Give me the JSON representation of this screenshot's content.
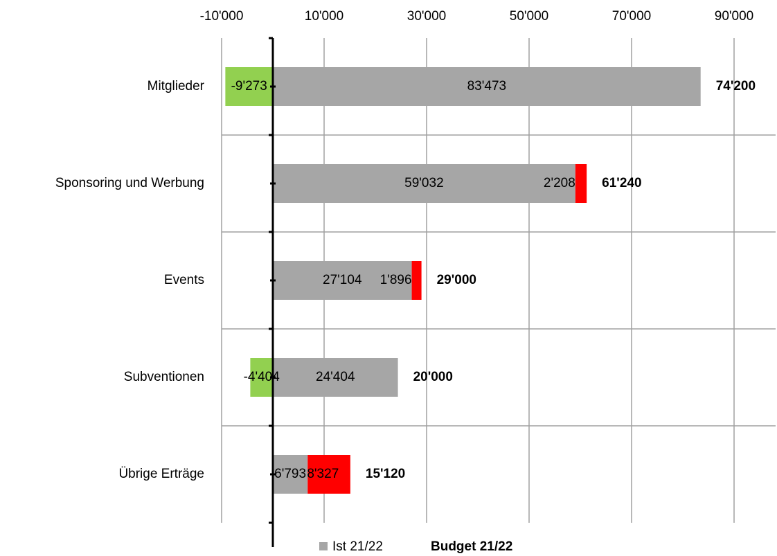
{
  "chart_data": {
    "type": "hbar-stacked",
    "categories": [
      "Mitglieder",
      "Sponsoring und Werbung",
      "Events",
      "Subventionen",
      "Übrige Erträge"
    ],
    "series": [
      {
        "name": "Ist 21/22",
        "color": "#a6a6a6",
        "values": [
          83473,
          59032,
          27104,
          24404,
          6793
        ],
        "value_labels": [
          "83'473",
          "59'032",
          "27'104",
          "24'404",
          "6'793"
        ]
      },
      {
        "color": "#92d050",
        "values": [
          -9273,
          null,
          null,
          -4404,
          null
        ],
        "value_labels": [
          "-9'273",
          null,
          null,
          "-4'404",
          null
        ]
      },
      {
        "color": "#ff0000",
        "values": [
          null,
          2208,
          1896,
          null,
          8327
        ],
        "value_labels": [
          null,
          "2'208",
          "1'896",
          null,
          "8'327"
        ]
      }
    ],
    "budget": {
      "name": "Budget 21/22",
      "values": [
        74200,
        61240,
        29000,
        20000,
        15120
      ],
      "value_labels": [
        "74'200",
        "61'240",
        "29'000",
        "20'000",
        "15'120"
      ]
    },
    "xlim": [
      -10000,
      95000
    ],
    "xticks": [
      {
        "value": -10000,
        "label": "-10'000"
      },
      {
        "value": 10000,
        "label": "10'000"
      },
      {
        "value": 30000,
        "label": "30'000"
      },
      {
        "value": 50000,
        "label": "50'000"
      },
      {
        "value": 70000,
        "label": "70'000"
      },
      {
        "value": 90000,
        "label": "90'000"
      }
    ],
    "grid": true
  }
}
